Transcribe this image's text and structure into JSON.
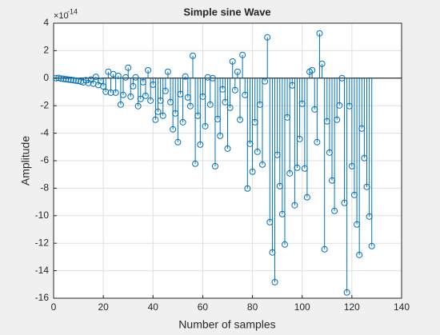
{
  "chart_data": {
    "type": "stem",
    "title": "Simple sine Wave",
    "x_label": "Number of samples",
    "y_label": "Amplitude",
    "y_multiplier": "×10",
    "y_multiplier_exp": "-14",
    "color": "#0072bd",
    "grid": true,
    "xlim": [
      0,
      140
    ],
    "xticks": [
      0,
      20,
      40,
      60,
      80,
      100,
      120,
      140
    ],
    "ylim": [
      -16,
      4
    ],
    "yticks": [
      -16,
      -14,
      -12,
      -10,
      -8,
      -6,
      -4,
      -2,
      0,
      2,
      4
    ],
    "x": [
      1,
      2,
      3,
      4,
      5,
      6,
      7,
      8,
      9,
      10,
      11,
      12,
      13,
      14,
      15,
      16,
      17,
      18,
      19,
      20,
      21,
      22,
      23,
      24,
      25,
      26,
      27,
      28,
      29,
      30,
      31,
      32,
      33,
      34,
      35,
      36,
      37,
      38,
      39,
      40,
      41,
      42,
      43,
      44,
      45,
      46,
      47,
      48,
      49,
      50,
      51,
      52,
      53,
      54,
      55,
      56,
      57,
      58,
      59,
      60,
      61,
      62,
      63,
      64,
      65,
      66,
      67,
      68,
      69,
      70,
      71,
      72,
      73,
      74,
      75,
      76,
      77,
      78,
      79,
      80,
      81,
      82,
      83,
      84,
      85,
      86,
      87,
      88,
      89,
      90,
      91,
      92,
      93,
      94,
      95,
      96,
      97,
      98,
      99,
      100,
      101,
      102,
      103,
      104,
      105,
      106,
      107,
      108,
      109,
      110,
      111,
      112,
      113,
      114,
      115,
      116,
      117,
      118,
      119,
      120,
      121,
      122,
      123,
      124,
      125,
      126,
      127,
      128
    ],
    "values": [
      0,
      0.02,
      -0.03,
      -0.05,
      -0.08,
      -0.1,
      -0.12,
      -0.15,
      -0.18,
      -0.2,
      -0.25,
      -0.3,
      -0.15,
      -0.35,
      -0.1,
      -0.4,
      0.1,
      -0.5,
      -0.2,
      -0.6,
      -0.99,
      0.47,
      -1.05,
      0.29,
      -1.05,
      0.17,
      -1.92,
      -1.22,
      0.06,
      0.76,
      -1.34,
      -0.58,
      0.06,
      -2.03,
      -1.51,
      -0.29,
      -1.28,
      0.58,
      -1.63,
      -0.47,
      -3.02,
      -2.44,
      -1.63,
      -2.73,
      -0.93,
      0.47,
      -1.74,
      -3.72,
      -2.56,
      -4.65,
      -1.16,
      -3.2,
      0.12,
      -1.4,
      -2.03,
      1.63,
      -6.22,
      -2.73,
      -4.83,
      -1.34,
      -3.49,
      0.06,
      -1.92,
      0,
      -6.4,
      -2.97,
      -4.19,
      -0.81,
      -1.74,
      -5.12,
      -2.15,
      1.22,
      -0.87,
      0.47,
      -3.02,
      1.69,
      -1.22,
      -8.02,
      -4.77,
      -6.8,
      -3.2,
      -5.35,
      -1.92,
      -6.28,
      -0.23,
      2.97,
      -10.47,
      -12.67,
      -14.83,
      -5.58,
      -7.85,
      -9.88,
      -12.09,
      -2.85,
      -6.92,
      -0.52,
      -9.24,
      -6.51,
      -4.42,
      -1.86,
      -6.57,
      -8.66,
      0.47,
      0.58,
      -2.27,
      -4.65,
      3.26,
      1.05,
      -12.44,
      -3.14,
      -5.41,
      -7.44,
      -9.65,
      -3.02,
      -1.98,
      0,
      -9.07,
      -15.58,
      -2.03,
      -6.4,
      -8.49,
      -10.64,
      -12.85,
      -3.66,
      -5.81,
      -7.91,
      -10.06,
      -12.21
    ]
  }
}
